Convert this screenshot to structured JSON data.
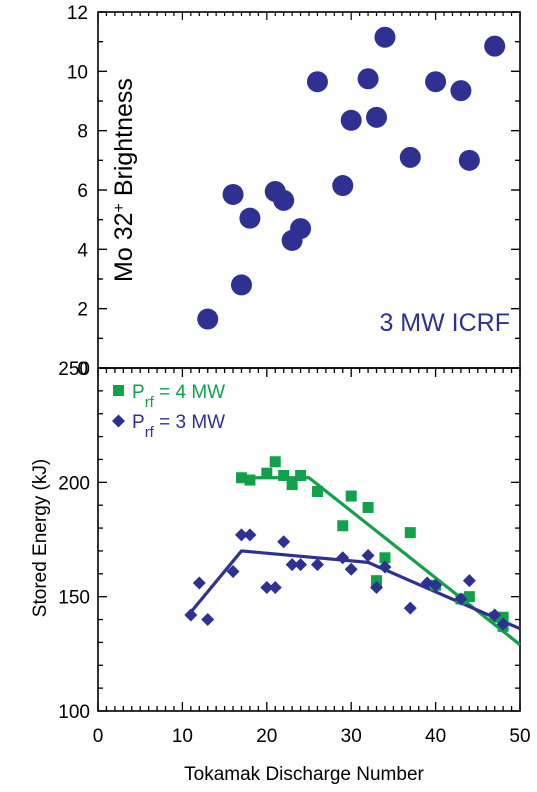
{
  "chart_data": [
    {
      "type": "scatter",
      "ylabel_main": "Mo 32",
      "ylabel_sup": "+",
      "ylabel_tail": " Brightness",
      "annotation": "3 MW ICRF",
      "xlim": [
        0,
        50
      ],
      "ylim": [
        0,
        12
      ],
      "yticks": [
        0,
        2,
        4,
        6,
        8,
        10,
        12
      ],
      "grid": false,
      "colors": {
        "points": "#2e3192",
        "annotation": "#2e3192"
      },
      "points": [
        {
          "x": 13,
          "y": 1.65
        },
        {
          "x": 16,
          "y": 5.85
        },
        {
          "x": 17,
          "y": 2.8
        },
        {
          "x": 18,
          "y": 5.05
        },
        {
          "x": 21,
          "y": 5.95
        },
        {
          "x": 22,
          "y": 5.65
        },
        {
          "x": 23,
          "y": 4.3
        },
        {
          "x": 24,
          "y": 4.7
        },
        {
          "x": 26,
          "y": 9.65
        },
        {
          "x": 29,
          "y": 6.15
        },
        {
          "x": 30,
          "y": 8.35
        },
        {
          "x": 32,
          "y": 9.75
        },
        {
          "x": 33,
          "y": 8.45
        },
        {
          "x": 34,
          "y": 11.15
        },
        {
          "x": 37,
          "y": 7.1
        },
        {
          "x": 40,
          "y": 9.65
        },
        {
          "x": 43,
          "y": 9.35
        },
        {
          "x": 44,
          "y": 7.0
        },
        {
          "x": 47,
          "y": 10.85
        }
      ]
    },
    {
      "type": "scatter",
      "xlabel": "Tokamak Discharge Number",
      "ylabel": "Stored Energy (kJ)",
      "xlim": [
        0,
        50
      ],
      "ylim": [
        100,
        250
      ],
      "xticks": [
        0,
        10,
        20,
        30,
        40,
        50
      ],
      "yticks": [
        100,
        150,
        200,
        250
      ],
      "grid": false,
      "legend_placement": "top-left",
      "series": [
        {
          "name_base": "P",
          "name_sub": "rf",
          "name_rest": " = 4 MW",
          "color": "#12a14b",
          "marker": "square",
          "points": [
            {
              "x": 17,
              "y": 202
            },
            {
              "x": 18,
              "y": 201
            },
            {
              "x": 20,
              "y": 204
            },
            {
              "x": 21,
              "y": 209
            },
            {
              "x": 22,
              "y": 203
            },
            {
              "x": 23,
              "y": 199
            },
            {
              "x": 24,
              "y": 203
            },
            {
              "x": 26,
              "y": 196
            },
            {
              "x": 29,
              "y": 181
            },
            {
              "x": 30,
              "y": 194
            },
            {
              "x": 32,
              "y": 189
            },
            {
              "x": 33,
              "y": 157
            },
            {
              "x": 34,
              "y": 167
            },
            {
              "x": 37,
              "y": 178
            },
            {
              "x": 40,
              "y": 155
            },
            {
              "x": 43,
              "y": 149
            },
            {
              "x": 44,
              "y": 150
            },
            {
              "x": 47,
              "y": 141
            },
            {
              "x": 48,
              "y": 141
            },
            {
              "x": 48,
              "y": 137
            }
          ],
          "trend": [
            {
              "x": 17,
              "y": 202
            },
            {
              "x": 25,
              "y": 202
            },
            {
              "x": 50,
              "y": 129
            }
          ]
        },
        {
          "name_base": "P",
          "name_sub": "rf",
          "name_rest": " = 3 MW",
          "color": "#2e3192",
          "marker": "diamond",
          "points": [
            {
              "x": 11,
              "y": 142
            },
            {
              "x": 12,
              "y": 156
            },
            {
              "x": 13,
              "y": 140
            },
            {
              "x": 16,
              "y": 161
            },
            {
              "x": 17,
              "y": 177
            },
            {
              "x": 18,
              "y": 177
            },
            {
              "x": 20,
              "y": 154
            },
            {
              "x": 21,
              "y": 154
            },
            {
              "x": 22,
              "y": 174
            },
            {
              "x": 23,
              "y": 164
            },
            {
              "x": 24,
              "y": 164
            },
            {
              "x": 26,
              "y": 164
            },
            {
              "x": 29,
              "y": 167
            },
            {
              "x": 30,
              "y": 162
            },
            {
              "x": 32,
              "y": 168
            },
            {
              "x": 33,
              "y": 154
            },
            {
              "x": 34,
              "y": 163
            },
            {
              "x": 37,
              "y": 145
            },
            {
              "x": 39,
              "y": 156
            },
            {
              "x": 40,
              "y": 155
            },
            {
              "x": 43,
              "y": 149
            },
            {
              "x": 44,
              "y": 157
            },
            {
              "x": 47,
              "y": 142
            },
            {
              "x": 48,
              "y": 138
            }
          ],
          "trend": [
            {
              "x": 10.5,
              "y": 141
            },
            {
              "x": 17,
              "y": 170
            },
            {
              "x": 32,
              "y": 165
            },
            {
              "x": 50,
              "y": 136
            }
          ]
        }
      ]
    }
  ]
}
